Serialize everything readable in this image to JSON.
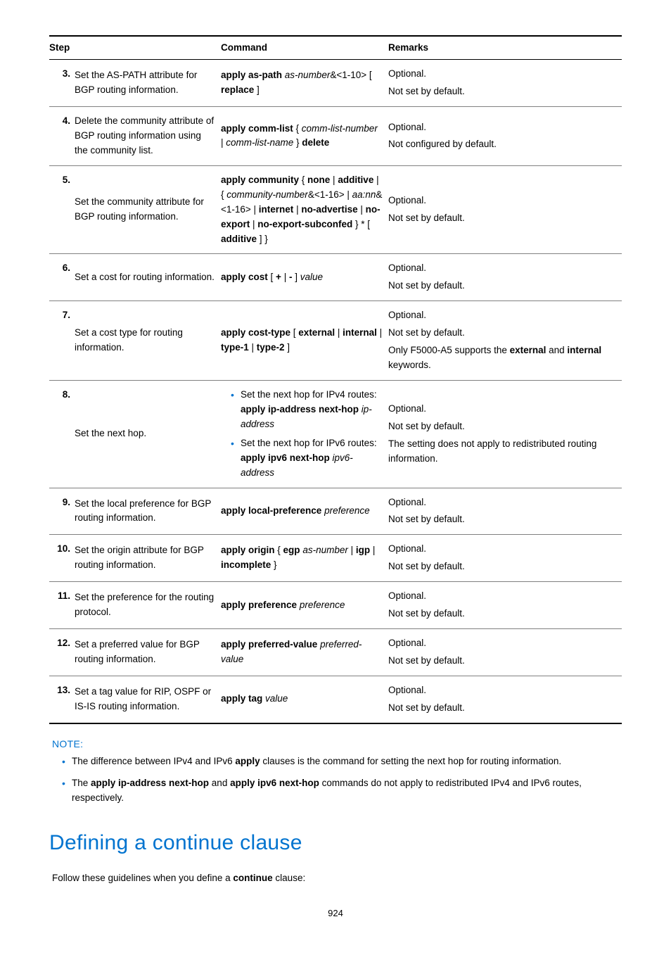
{
  "table": {
    "headers": {
      "step": "Step",
      "command": "Command",
      "remarks": "Remarks"
    },
    "rows": [
      {
        "num": "3.",
        "desc": "Set the AS-PATH attribute for BGP routing information.",
        "cmd_html": "<b>apply as-path</b> <i>as-number</i>&<1-10> [ <b>replace</b> ]",
        "remarks": [
          "Optional.",
          "Not set by default."
        ]
      },
      {
        "num": "4.",
        "desc": "Delete the community attribute of BGP routing information using the community list.",
        "cmd_html": "<b>apply comm-list</b> { <i>comm-list-number</i> | <i>comm-list-name</i> } <b>delete</b>",
        "remarks": [
          "Optional.",
          "Not configured by default."
        ]
      },
      {
        "num": "5.",
        "desc": "Set the community attribute for BGP routing information.",
        "cmd_html": "<b>apply community</b> { <b>none</b> | <b>additive</b> | { <i>community-number</i>&<1-16> | <i>aa:nn</i>&<1-16> | <b>internet</b> | <b>no-advertise</b> | <b>no-export</b> | <b>no-export-subconfed</b> } * [ <b>additive</b> ] }",
        "remarks": [
          "Optional.",
          "Not set by default."
        ]
      },
      {
        "num": "6.",
        "desc": "Set a cost for routing information.",
        "cmd_html": "<b>apply cost</b> [ <b>+</b> | <b>-</b> ] <i>value</i>",
        "remarks": [
          "Optional.",
          "Not set by default."
        ]
      },
      {
        "num": "7.",
        "desc": "Set a cost type for routing information.",
        "cmd_html": "<b>apply cost-type</b> [ <b>external</b> | <b>internal</b> | <b>type-1</b> | <b>type-2</b> ]",
        "remarks": [
          "Optional.",
          "Not set by default.",
          "Only F5000-A5 supports the <b>external</b> and <b>internal</b> keywords."
        ]
      },
      {
        "num": "8.",
        "desc": "Set the next hop.",
        "cmd_bullets": [
          "Set the next hop for IPv4 routes:<br><b>apply ip-address next-hop</b> <i>ip-address</i>",
          "Set the next hop for IPv6 routes:<br><b>apply ipv6 next-hop</b> <i>ipv6-address</i>"
        ],
        "remarks": [
          "Optional.",
          "Not set by default.",
          "The setting does not apply to redistributed routing information."
        ]
      },
      {
        "num": "9.",
        "desc": "Set the local preference for BGP routing information.",
        "cmd_html": "<b>apply local-preference</b> <i>preference</i>",
        "remarks": [
          "Optional.",
          "Not set by default."
        ]
      },
      {
        "num": "10.",
        "desc": "Set the origin attribute for BGP routing information.",
        "cmd_html": "<b>apply origin</b> { <b>egp</b> <i>as-number</i> | <b>igp</b> | <b>incomplete</b> }",
        "remarks": [
          "Optional.",
          "Not set by default."
        ]
      },
      {
        "num": "11.",
        "desc": "Set the preference for the routing protocol.",
        "cmd_html": "<b>apply preference</b> <i>preference</i>",
        "remarks": [
          "Optional.",
          "Not set by default."
        ]
      },
      {
        "num": "12.",
        "desc": "Set a preferred value for BGP routing information.",
        "cmd_html": "<b>apply preferred-value</b> <i>preferred-value</i>",
        "remarks": [
          "Optional.",
          "Not set by default."
        ]
      },
      {
        "num": "13.",
        "desc": "Set a tag value for RIP, OSPF or IS-IS routing information.",
        "cmd_html": "<b>apply tag</b> <i>value</i>",
        "remarks": [
          "Optional.",
          "Not set by default."
        ]
      }
    ]
  },
  "note": {
    "label": "NOTE:",
    "items": [
      "The difference between IPv4 and IPv6 <b>apply</b> clauses is the command for setting the next hop for routing information.",
      "The <b>apply ip-address next-hop</b> and <b>apply ipv6 next-hop</b> commands do not apply to redistributed IPv4 and IPv6 routes, respectively."
    ]
  },
  "section_heading": "Defining a continue clause",
  "body_text": "Follow these guidelines when you define a <b>continue</b> clause:",
  "page_number": "924"
}
